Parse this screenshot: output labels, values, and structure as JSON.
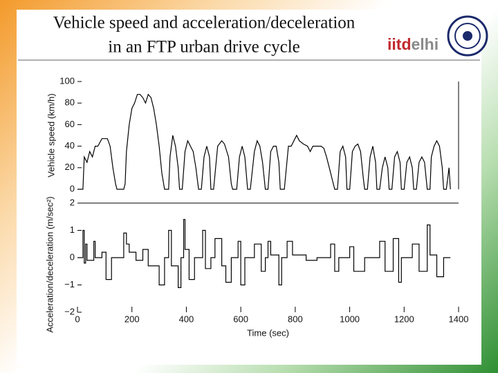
{
  "header": {
    "title_lines": [
      "Vehicle speed and acceleration/deceleration",
      "in an FTP urban drive cycle"
    ],
    "logo_parts": [
      "iitd",
      "elhi"
    ]
  },
  "chart_data": [
    {
      "type": "line",
      "ylabel": "Vehicle speed (km/h)",
      "color": "#000000",
      "xlim": [
        0,
        1400
      ],
      "ylim": [
        0,
        100
      ],
      "yticks": [
        0,
        20,
        40,
        60,
        80,
        100
      ],
      "x": [
        0,
        20,
        25,
        35,
        45,
        55,
        65,
        75,
        90,
        110,
        120,
        130,
        140,
        145,
        170,
        175,
        180,
        190,
        200,
        210,
        220,
        230,
        240,
        250,
        260,
        270,
        280,
        290,
        300,
        310,
        320,
        335,
        340,
        350,
        360,
        370,
        375,
        385,
        395,
        405,
        415,
        425,
        435,
        445,
        455,
        465,
        475,
        485,
        490,
        500,
        515,
        530,
        540,
        555,
        565,
        570,
        585,
        595,
        605,
        615,
        625,
        635,
        650,
        660,
        670,
        680,
        690,
        700,
        710,
        720,
        730,
        740,
        745,
        760,
        775,
        785,
        795,
        805,
        815,
        830,
        845,
        855,
        865,
        880,
        895,
        905,
        915,
        925,
        935,
        945,
        955,
        965,
        975,
        985,
        990,
        1000,
        1010,
        1020,
        1030,
        1040,
        1050,
        1055,
        1065,
        1075,
        1085,
        1095,
        1100,
        1110,
        1120,
        1130,
        1140,
        1145,
        1155,
        1165,
        1175,
        1185,
        1190,
        1200,
        1210,
        1220,
        1230,
        1235,
        1245,
        1255,
        1265,
        1275,
        1285,
        1295,
        1300,
        1310,
        1320,
        1330,
        1340,
        1345,
        1355,
        1365,
        1370
      ],
      "values": [
        0,
        0,
        30,
        25,
        35,
        30,
        40,
        40,
        47,
        47,
        40,
        20,
        5,
        0,
        0,
        5,
        35,
        60,
        75,
        80,
        88,
        88,
        85,
        80,
        88,
        85,
        75,
        60,
        40,
        15,
        0,
        0,
        30,
        50,
        40,
        20,
        0,
        0,
        35,
        45,
        40,
        35,
        20,
        0,
        0,
        30,
        40,
        30,
        0,
        0,
        40,
        45,
        42,
        30,
        5,
        0,
        0,
        30,
        40,
        30,
        0,
        0,
        35,
        45,
        40,
        25,
        0,
        0,
        35,
        40,
        40,
        25,
        0,
        0,
        40,
        40,
        45,
        50,
        45,
        42,
        40,
        35,
        40,
        40,
        40,
        38,
        30,
        20,
        10,
        0,
        0,
        35,
        40,
        30,
        0,
        0,
        35,
        40,
        42,
        35,
        10,
        0,
        0,
        30,
        40,
        25,
        0,
        0,
        20,
        30,
        20,
        0,
        0,
        30,
        35,
        25,
        0,
        0,
        25,
        30,
        20,
        0,
        0,
        25,
        30,
        25,
        0,
        0,
        30,
        40,
        45,
        40,
        20,
        0,
        0,
        20,
        0
      ]
    },
    {
      "type": "line",
      "ylabel": "Acceleration/deceleration (m/sec²)",
      "xlabel": "Time (sec)",
      "color": "#000000",
      "xlim": [
        0,
        1400
      ],
      "ylim": [
        -2,
        2
      ],
      "yticks": [
        {
          "value": -2,
          "label": "−2"
        },
        {
          "value": -1,
          "label": "−1"
        },
        0,
        1,
        2
      ],
      "xticks": [
        0,
        200,
        400,
        600,
        800,
        1000,
        1200,
        1400
      ],
      "x": [
        0,
        20,
        20,
        25,
        25,
        30,
        30,
        35,
        35,
        60,
        60,
        65,
        65,
        90,
        90,
        105,
        105,
        125,
        125,
        170,
        170,
        180,
        180,
        190,
        190,
        215,
        215,
        240,
        240,
        260,
        260,
        300,
        300,
        320,
        320,
        335,
        335,
        345,
        345,
        370,
        370,
        380,
        380,
        390,
        390,
        395,
        395,
        410,
        410,
        430,
        430,
        460,
        460,
        470,
        470,
        490,
        490,
        505,
        505,
        530,
        530,
        545,
        545,
        565,
        565,
        590,
        590,
        600,
        600,
        615,
        615,
        650,
        650,
        675,
        675,
        690,
        690,
        700,
        700,
        710,
        710,
        740,
        740,
        750,
        750,
        770,
        770,
        790,
        790,
        840,
        840,
        880,
        880,
        930,
        930,
        945,
        945,
        960,
        960,
        1000,
        1000,
        1015,
        1015,
        1055,
        1055,
        1110,
        1110,
        1130,
        1130,
        1160,
        1160,
        1180,
        1180,
        1190,
        1190,
        1230,
        1230,
        1255,
        1255,
        1285,
        1285,
        1295,
        1295,
        1320,
        1320,
        1345,
        1345,
        1370
      ],
      "values": [
        0,
        0,
        1.0,
        1.0,
        -0.2,
        -0.2,
        0.5,
        0.5,
        -0.1,
        -0.1,
        0.6,
        0.6,
        0,
        0,
        0.2,
        0.2,
        -0.8,
        -0.8,
        0,
        0,
        0.9,
        0.9,
        0.5,
        0.5,
        0.2,
        0.2,
        -0.1,
        -0.1,
        0.3,
        0.3,
        -0.3,
        -0.3,
        -1.0,
        -1.0,
        0,
        0,
        1.0,
        1.0,
        -0.3,
        -0.3,
        -1.1,
        -1.1,
        0,
        0,
        1.4,
        1.4,
        0.3,
        0.3,
        -0.8,
        -0.8,
        0,
        0,
        1.0,
        1.0,
        -0.4,
        -0.4,
        0,
        0,
        0.7,
        0.7,
        -0.3,
        -0.3,
        -0.9,
        -0.9,
        0,
        0,
        0.6,
        0.6,
        -1.0,
        -1.0,
        0,
        0,
        0.5,
        0.5,
        -0.5,
        -0.5,
        0,
        0,
        0.6,
        0.6,
        0.1,
        0.1,
        -1.0,
        -1.0,
        0,
        0,
        0.6,
        0.6,
        0.1,
        0.1,
        -0.1,
        -0.1,
        0,
        0,
        0.5,
        0.5,
        -0.5,
        -0.5,
        0,
        0,
        0.4,
        0.4,
        -0.5,
        -0.5,
        0,
        0,
        0.6,
        0.6,
        -0.5,
        -0.5,
        0.7,
        0.7,
        -0.9,
        -0.9,
        0,
        0,
        0.5,
        0.5,
        -0.5,
        -0.5,
        1.2,
        1.2,
        0.1,
        0.1,
        -0.7,
        -0.7,
        0,
        0
      ]
    }
  ]
}
